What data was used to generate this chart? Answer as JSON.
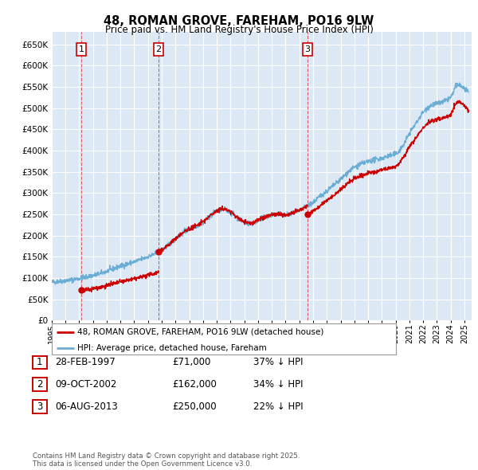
{
  "title": "48, ROMAN GROVE, FAREHAM, PO16 9LW",
  "subtitle": "Price paid vs. HM Land Registry's House Price Index (HPI)",
  "bg_color": "#dce9f5",
  "grid_color": "#ffffff",
  "hpi_color": "#6aaed6",
  "price_color": "#cc0000",
  "ylim": [
    0,
    680000
  ],
  "yticks": [
    0,
    50000,
    100000,
    150000,
    200000,
    250000,
    300000,
    350000,
    400000,
    450000,
    500000,
    550000,
    600000,
    650000
  ],
  "xlim_start": 1995.0,
  "xlim_end": 2025.5,
  "sale_dates": [
    1997.162,
    2002.769,
    2013.597
  ],
  "sale_prices": [
    71000,
    162000,
    250000
  ],
  "sale_labels": [
    "1",
    "2",
    "3"
  ],
  "legend_price_label": "48, ROMAN GROVE, FAREHAM, PO16 9LW (detached house)",
  "legend_hpi_label": "HPI: Average price, detached house, Fareham",
  "table_data": [
    {
      "num": "1",
      "date": "28-FEB-1997",
      "price": "£71,000",
      "hpi": "37% ↓ HPI"
    },
    {
      "num": "2",
      "date": "09-OCT-2002",
      "price": "£162,000",
      "hpi": "34% ↓ HPI"
    },
    {
      "num": "3",
      "date": "06-AUG-2013",
      "price": "£250,000",
      "hpi": "22% ↓ HPI"
    }
  ],
  "footer": "Contains HM Land Registry data © Crown copyright and database right 2025.\nThis data is licensed under the Open Government Licence v3.0."
}
